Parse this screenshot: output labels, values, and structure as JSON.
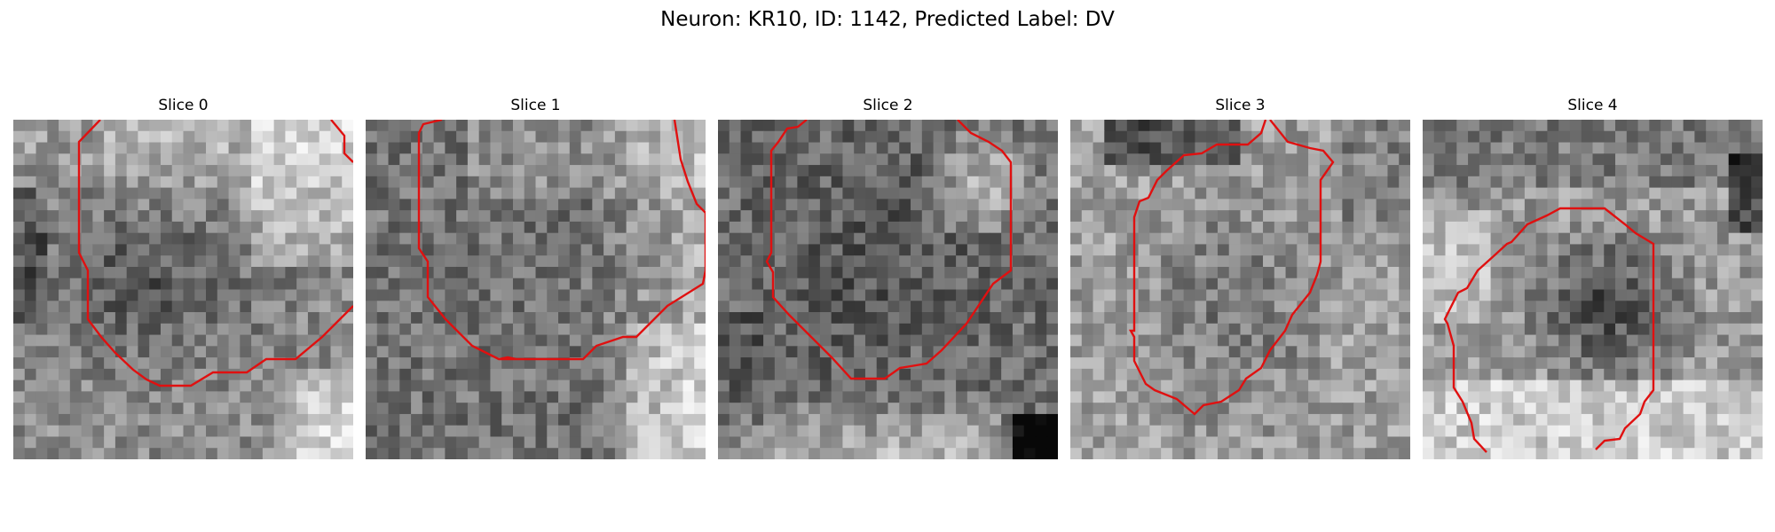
{
  "figure": {
    "title": "Neuron: KR10, ID: 1142, Predicted Label: DV",
    "contour_color": "#e01010",
    "colormap": "gray"
  },
  "panels": [
    {
      "title": "Slice 0",
      "texture_seed": 11,
      "dark_region": "ellipse-center-left",
      "bright_region": "top-right, bottom-right"
    },
    {
      "title": "Slice 1",
      "texture_seed": 23,
      "dark_region": "center",
      "bright_region": "right edge"
    },
    {
      "title": "Slice 2",
      "texture_seed": 37,
      "dark_region": "center",
      "bright_region": "top-right, bottom"
    },
    {
      "title": "Slice 3",
      "texture_seed": 41,
      "dark_region": "center",
      "bright_region": "surround"
    },
    {
      "title": "Slice 4",
      "texture_seed": 53,
      "dark_region": "center-right",
      "bright_region": "left, bottom"
    }
  ]
}
